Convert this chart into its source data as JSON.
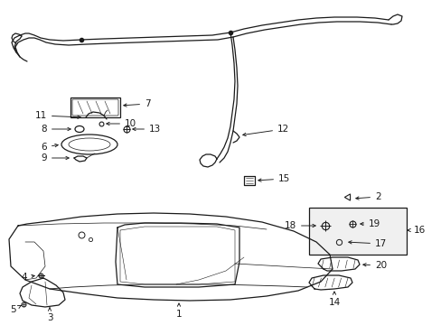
{
  "bg_color": "#ffffff",
  "fig_width": 4.89,
  "fig_height": 3.6,
  "dpi": 100,
  "line_color": "#1a1a1a",
  "lw": 0.9,
  "font_size": 7.5
}
